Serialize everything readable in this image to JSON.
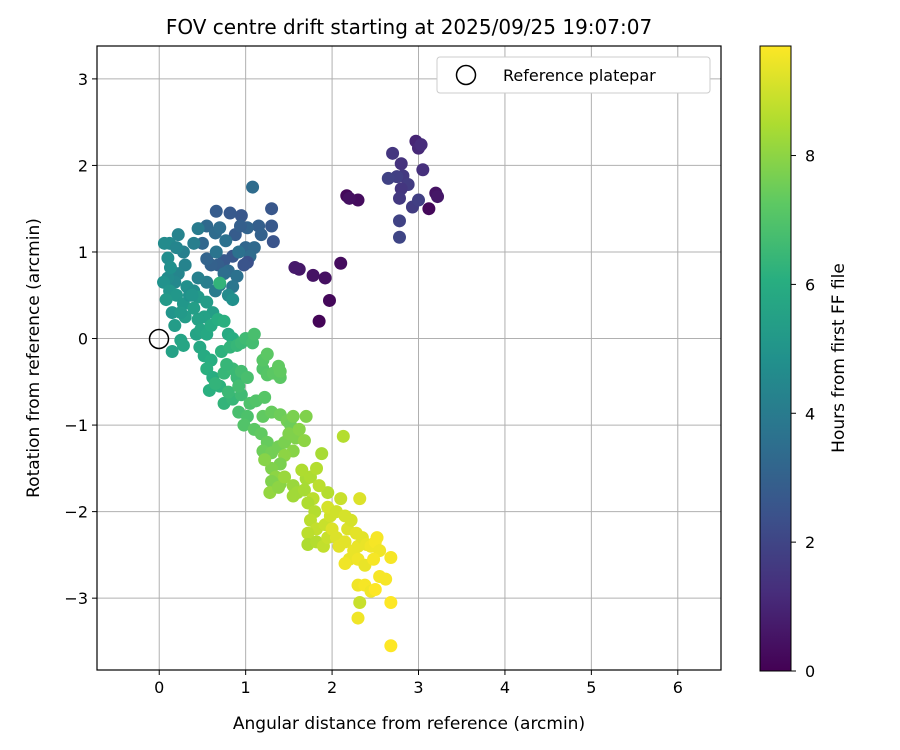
{
  "chart_data": {
    "type": "scatter",
    "title": "FOV centre drift starting at 2025/09/25 19:07:07",
    "xlabel": "Angular distance from reference (arcmin)",
    "ylabel": "Rotation from reference (arcmin)",
    "xlim": [
      -0.72,
      6.5
    ],
    "ylim": [
      -3.83,
      3.38
    ],
    "xticks": [
      0,
      1,
      2,
      3,
      4,
      5,
      6
    ],
    "yticks": [
      -3,
      -2,
      -1,
      0,
      1,
      2,
      3
    ],
    "grid": true,
    "legend": {
      "placement": "top-right",
      "entries": [
        "Reference platepar"
      ]
    },
    "reference_point": {
      "label": "Reference platepar",
      "x": 0,
      "y": 0
    },
    "colorbar": {
      "label": "Hours from first FF file",
      "colormap": "viridis",
      "range": [
        0,
        9.7
      ],
      "ticks": [
        0,
        2,
        4,
        6,
        8
      ]
    },
    "points": [
      [
        1.85,
        0.2,
        0.1
      ],
      [
        1.97,
        0.44,
        0.2
      ],
      [
        2.1,
        0.87,
        0.3
      ],
      [
        1.92,
        0.7,
        0.4
      ],
      [
        1.78,
        0.73,
        0.5
      ],
      [
        1.62,
        0.8,
        0.6
      ],
      [
        1.57,
        0.82,
        0.7
      ],
      [
        2.17,
        1.65,
        0.2
      ],
      [
        2.3,
        1.6,
        0.3
      ],
      [
        2.2,
        1.62,
        0.4
      ],
      [
        3.12,
        1.5,
        0.2
      ],
      [
        3.2,
        1.68,
        0.5
      ],
      [
        3.22,
        1.64,
        0.6
      ],
      [
        2.97,
        2.28,
        1.0
      ],
      [
        3.0,
        2.2,
        1.1
      ],
      [
        3.03,
        2.24,
        1.2
      ],
      [
        3.05,
        1.95,
        1.3
      ],
      [
        2.8,
        2.02,
        1.4
      ],
      [
        2.7,
        2.14,
        1.5
      ],
      [
        2.82,
        1.88,
        1.6
      ],
      [
        2.88,
        1.78,
        1.7
      ],
      [
        2.75,
        1.87,
        1.8
      ],
      [
        2.65,
        1.85,
        1.9
      ],
      [
        2.8,
        1.73,
        1.5
      ],
      [
        2.78,
        1.62,
        1.6
      ],
      [
        2.93,
        1.52,
        1.7
      ],
      [
        3.0,
        1.6,
        1.8
      ],
      [
        2.78,
        1.36,
        1.9
      ],
      [
        2.78,
        1.17,
        2.0
      ],
      [
        1.08,
        1.75,
        3.4
      ],
      [
        1.3,
        1.5,
        2.6
      ],
      [
        1.3,
        1.3,
        2.7
      ],
      [
        1.32,
        1.12,
        2.5
      ],
      [
        1.15,
        1.3,
        2.9
      ],
      [
        1.18,
        1.2,
        3.0
      ],
      [
        1.02,
        1.28,
        3.1
      ],
      [
        1.0,
        1.05,
        3.2
      ],
      [
        1.1,
        1.05,
        3.3
      ],
      [
        1.05,
        0.95,
        3.4
      ],
      [
        0.95,
        1.42,
        2.6
      ],
      [
        0.82,
        1.45,
        2.7
      ],
      [
        0.66,
        1.47,
        2.8
      ],
      [
        0.88,
        1.2,
        2.8
      ],
      [
        0.94,
        1.3,
        2.9
      ],
      [
        1.02,
        0.88,
        2.4
      ],
      [
        0.98,
        0.85,
        2.5
      ],
      [
        0.85,
        0.95,
        2.6
      ],
      [
        0.75,
        0.9,
        2.7
      ],
      [
        0.68,
        0.85,
        2.9
      ],
      [
        0.6,
        0.85,
        3.0
      ],
      [
        0.55,
        0.92,
        3.1
      ],
      [
        0.5,
        1.1,
        3.2
      ],
      [
        0.55,
        1.3,
        3.3
      ],
      [
        0.65,
        1.22,
        3.4
      ],
      [
        0.7,
        1.28,
        3.5
      ],
      [
        0.77,
        1.13,
        3.6
      ],
      [
        0.92,
        1.0,
        3.6
      ],
      [
        0.66,
        1.0,
        3.7
      ],
      [
        0.8,
        0.78,
        3.4
      ],
      [
        0.75,
        0.75,
        3.5
      ],
      [
        0.9,
        0.72,
        3.6
      ],
      [
        0.85,
        0.6,
        3.8
      ],
      [
        0.7,
        0.62,
        3.9
      ],
      [
        0.65,
        0.55,
        4.0
      ],
      [
        0.55,
        0.65,
        4.1
      ],
      [
        0.45,
        0.7,
        4.2
      ],
      [
        0.45,
        1.27,
        4.0
      ],
      [
        0.4,
        1.1,
        4.1
      ],
      [
        0.28,
        1.0,
        4.2
      ],
      [
        0.3,
        0.85,
        4.3
      ],
      [
        0.22,
        0.75,
        4.4
      ],
      [
        0.18,
        0.65,
        4.5
      ],
      [
        0.1,
        0.7,
        4.6
      ],
      [
        0.22,
        1.2,
        4.3
      ],
      [
        0.12,
        1.1,
        4.5
      ],
      [
        0.06,
        1.1,
        4.6
      ],
      [
        0.2,
        1.05,
        4.4
      ],
      [
        0.1,
        0.93,
        4.7
      ],
      [
        0.13,
        0.82,
        4.8
      ],
      [
        0.05,
        0.65,
        4.9
      ],
      [
        0.12,
        0.55,
        5.0
      ],
      [
        0.2,
        0.5,
        5.1
      ],
      [
        0.08,
        0.45,
        5.2
      ],
      [
        0.15,
        0.3,
        5.0
      ],
      [
        0.28,
        0.4,
        5.1
      ],
      [
        0.35,
        0.5,
        4.9
      ],
      [
        0.32,
        0.6,
        4.8
      ],
      [
        0.4,
        0.55,
        4.7
      ],
      [
        0.45,
        0.48,
        5.2
      ],
      [
        0.55,
        0.42,
        5.3
      ],
      [
        0.62,
        0.3,
        5.4
      ],
      [
        0.52,
        0.25,
        5.5
      ],
      [
        0.45,
        0.22,
        5.5
      ],
      [
        0.4,
        0.35,
        5.4
      ],
      [
        0.3,
        0.25,
        5.3
      ],
      [
        0.25,
        0.3,
        5.2
      ],
      [
        0.18,
        0.15,
        5.3
      ],
      [
        0.25,
        -0.02,
        5.6
      ],
      [
        0.28,
        -0.08,
        5.7
      ],
      [
        0.15,
        -0.15,
        5.5
      ],
      [
        0.8,
        0.5,
        4.6
      ],
      [
        0.85,
        0.45,
        4.8
      ],
      [
        0.38,
        0.5,
        5.0
      ],
      [
        0.43,
        0.05,
        5.6
      ],
      [
        0.48,
        0.1,
        5.7
      ],
      [
        0.55,
        0.05,
        5.8
      ],
      [
        0.6,
        0.15,
        5.9
      ],
      [
        0.68,
        0.22,
        6.0
      ],
      [
        0.75,
        0.2,
        6.1
      ],
      [
        0.8,
        0.05,
        5.9
      ],
      [
        0.85,
        0.0,
        6.0
      ],
      [
        0.7,
        0.64,
        6.3
      ],
      [
        0.47,
        -0.1,
        5.8
      ],
      [
        0.52,
        -0.2,
        5.9
      ],
      [
        0.6,
        -0.25,
        6.0
      ],
      [
        0.55,
        -0.35,
        6.1
      ],
      [
        0.62,
        -0.45,
        6.0
      ],
      [
        0.7,
        -0.55,
        6.2
      ],
      [
        0.58,
        -0.6,
        6.1
      ],
      [
        0.65,
        -0.52,
        6.3
      ],
      [
        0.75,
        -0.4,
        6.4
      ],
      [
        0.85,
        -0.35,
        6.5
      ],
      [
        0.78,
        -0.3,
        6.4
      ],
      [
        0.9,
        -0.45,
        6.5
      ],
      [
        0.75,
        -0.75,
        6.3
      ],
      [
        0.85,
        -0.7,
        6.4
      ],
      [
        0.95,
        -0.65,
        6.6
      ],
      [
        0.8,
        -0.62,
        6.5
      ],
      [
        0.92,
        -0.55,
        6.7
      ],
      [
        0.95,
        -0.38,
        6.7
      ],
      [
        1.02,
        -0.45,
        6.8
      ],
      [
        0.72,
        -0.15,
        6.2
      ],
      [
        0.82,
        -0.1,
        6.3
      ],
      [
        0.9,
        -0.08,
        6.4
      ],
      [
        0.95,
        -0.05,
        6.5
      ],
      [
        1.0,
        0.0,
        6.6
      ],
      [
        1.08,
        -0.05,
        6.7
      ],
      [
        1.1,
        0.05,
        6.8
      ],
      [
        0.92,
        -0.85,
        6.8
      ],
      [
        1.02,
        -0.9,
        6.9
      ],
      [
        0.98,
        -1.0,
        7.0
      ],
      [
        1.05,
        -0.75,
        6.9
      ],
      [
        1.12,
        -0.72,
        7.0
      ],
      [
        1.22,
        -0.68,
        7.1
      ],
      [
        1.2,
        -0.35,
        7.0
      ],
      [
        1.25,
        -0.42,
        7.1
      ],
      [
        1.32,
        -0.4,
        7.2
      ],
      [
        1.4,
        -0.45,
        7.2
      ],
      [
        1.38,
        -0.32,
        7.3
      ],
      [
        1.2,
        -0.25,
        7.1
      ],
      [
        1.25,
        -0.18,
        7.2
      ],
      [
        1.4,
        -0.38,
        7.3
      ],
      [
        1.2,
        -0.9,
        7.3
      ],
      [
        1.3,
        -0.85,
        7.4
      ],
      [
        1.4,
        -0.88,
        7.5
      ],
      [
        1.48,
        -0.95,
        7.6
      ],
      [
        1.52,
        -1.0,
        7.5
      ],
      [
        1.55,
        -0.9,
        7.7
      ],
      [
        1.7,
        -0.9,
        7.8
      ],
      [
        1.1,
        -1.05,
        7.2
      ],
      [
        1.18,
        -1.1,
        7.3
      ],
      [
        1.25,
        -1.2,
        7.4
      ],
      [
        1.2,
        -1.3,
        7.5
      ],
      [
        1.3,
        -1.32,
        7.6
      ],
      [
        1.38,
        -1.25,
        7.6
      ],
      [
        1.45,
        -1.2,
        7.7
      ],
      [
        1.5,
        -1.1,
        7.8
      ],
      [
        1.58,
        -1.15,
        7.8
      ],
      [
        1.62,
        -1.05,
        7.9
      ],
      [
        1.68,
        -1.18,
        8.0
      ],
      [
        1.55,
        -1.3,
        7.9
      ],
      [
        1.45,
        -1.35,
        8.0
      ],
      [
        1.4,
        -1.45,
        7.7
      ],
      [
        1.3,
        -1.5,
        7.8
      ],
      [
        1.22,
        -1.4,
        7.9
      ],
      [
        1.35,
        -1.6,
        8.0
      ],
      [
        1.4,
        -1.68,
        7.9
      ],
      [
        1.3,
        -1.65,
        7.8
      ],
      [
        1.28,
        -1.78,
        8.1
      ],
      [
        1.38,
        -1.72,
        8.0
      ],
      [
        1.45,
        -1.6,
        8.2
      ],
      [
        1.55,
        -1.7,
        8.2
      ],
      [
        1.6,
        -1.78,
        8.3
      ],
      [
        1.55,
        -1.82,
        8.3
      ],
      [
        1.68,
        -1.75,
        8.4
      ],
      [
        1.7,
        -1.62,
        8.4
      ],
      [
        1.65,
        -1.52,
        8.5
      ],
      [
        1.75,
        -1.6,
        8.5
      ],
      [
        1.82,
        -1.5,
        8.6
      ],
      [
        1.88,
        -1.33,
        8.4
      ],
      [
        2.13,
        -1.13,
        8.6
      ],
      [
        1.95,
        -1.78,
        8.6
      ],
      [
        1.85,
        -1.7,
        8.7
      ],
      [
        1.78,
        -1.85,
        8.7
      ],
      [
        1.72,
        -1.9,
        8.5
      ],
      [
        1.8,
        -2.0,
        8.6
      ],
      [
        1.75,
        -2.1,
        8.7
      ],
      [
        1.82,
        -2.2,
        8.8
      ],
      [
        1.72,
        -2.25,
        8.7
      ],
      [
        1.72,
        -2.38,
        8.5
      ],
      [
        1.82,
        -2.35,
        8.6
      ],
      [
        1.9,
        -2.4,
        8.8
      ],
      [
        1.95,
        -2.3,
        8.9
      ],
      [
        1.92,
        -2.15,
        8.9
      ],
      [
        1.98,
        -2.05,
        9.0
      ],
      [
        1.95,
        -1.95,
        9.1
      ],
      [
        2.05,
        -2.0,
        9.0
      ],
      [
        2.1,
        -1.85,
        8.9
      ],
      [
        2.15,
        -2.05,
        9.1
      ],
      [
        2.0,
        -2.2,
        9.2
      ],
      [
        2.05,
        -2.3,
        9.2
      ],
      [
        2.08,
        -2.4,
        9.3
      ],
      [
        2.15,
        -2.35,
        9.3
      ],
      [
        2.18,
        -2.2,
        9.2
      ],
      [
        2.22,
        -2.1,
        9.1
      ],
      [
        2.28,
        -2.25,
        9.3
      ],
      [
        2.25,
        -2.45,
        9.4
      ],
      [
        2.3,
        -2.4,
        9.4
      ],
      [
        2.35,
        -2.3,
        9.3
      ],
      [
        2.4,
        -2.38,
        9.4
      ],
      [
        2.32,
        -1.85,
        9.2
      ],
      [
        2.2,
        -2.55,
        9.4
      ],
      [
        2.15,
        -2.6,
        9.5
      ],
      [
        2.3,
        -2.55,
        9.5
      ],
      [
        2.38,
        -2.62,
        9.4
      ],
      [
        2.45,
        -2.4,
        9.5
      ],
      [
        2.5,
        -2.35,
        9.6
      ],
      [
        2.55,
        -2.45,
        9.5
      ],
      [
        2.48,
        -2.55,
        9.6
      ],
      [
        2.52,
        -2.3,
        9.6
      ],
      [
        2.68,
        -2.53,
        9.6
      ],
      [
        2.3,
        -2.85,
        9.5
      ],
      [
        2.38,
        -2.85,
        9.6
      ],
      [
        2.45,
        -2.92,
        9.5
      ],
      [
        2.55,
        -2.75,
        9.6
      ],
      [
        2.62,
        -2.78,
        9.6
      ],
      [
        2.5,
        -2.9,
        9.7
      ],
      [
        2.32,
        -3.05,
        8.9
      ],
      [
        2.68,
        -3.05,
        9.7
      ],
      [
        2.3,
        -3.23,
        9.5
      ],
      [
        2.68,
        -3.55,
        9.7
      ]
    ]
  }
}
